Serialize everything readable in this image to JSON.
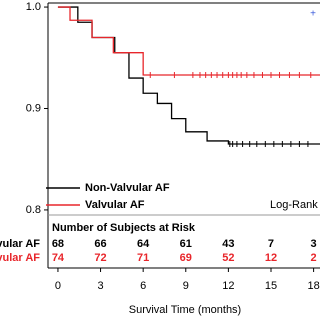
{
  "chart_data": {
    "type": "step",
    "x_label": "Survival Time (months)",
    "xlim": [
      -0.7,
      18.45
    ],
    "ylim": [
      0.795,
      1.004
    ],
    "xticks": [
      0,
      3,
      6,
      9,
      12,
      15,
      18
    ],
    "yticks": [
      0.8,
      0.9,
      {
        "value": 1,
        "label": "1.0"
      }
    ],
    "series": [
      {
        "name": "Non-Valvular AF",
        "color": "#000000",
        "x": [
          0,
          1.4,
          2.4,
          4,
          5,
          6,
          7,
          8,
          9,
          10.5,
          12,
          18.45
        ],
        "values": [
          1,
          0.985,
          0.97,
          0.955,
          0.93,
          0.915,
          0.905,
          0.89,
          0.877,
          0.868,
          0.865,
          0.865
        ],
        "censored": [
          12.1,
          12.3,
          12.6,
          13,
          13.5,
          14,
          14.6,
          15.2,
          15.8,
          16.4,
          17,
          17.6
        ]
      },
      {
        "name": "Valvular AF",
        "color": "#e8262b",
        "x": [
          0,
          0.85,
          2.4,
          3.9,
          6,
          18.45
        ],
        "values": [
          1,
          0.987,
          0.97,
          0.955,
          0.933,
          0.933
        ],
        "censored": [
          6.5,
          8.2,
          9.5,
          10,
          10.4,
          10.8,
          11.2,
          11.6,
          12,
          12.3,
          12.6,
          12.9,
          13.3,
          13.8,
          14.4,
          15,
          15.6,
          16.3,
          17,
          17.8
        ]
      }
    ],
    "risk_table": {
      "title": "Number of Subjects at Risk",
      "rows": [
        {
          "label": "Non-Valvular AF",
          "color": "#000000",
          "values": [
            68,
            66,
            64,
            61,
            43,
            7,
            3
          ]
        },
        {
          "label": "Valvular AF",
          "color": "#e8262b",
          "values": [
            74,
            72,
            71,
            69,
            52,
            12,
            2
          ]
        }
      ]
    },
    "annotation": "Log-Rank"
  }
}
